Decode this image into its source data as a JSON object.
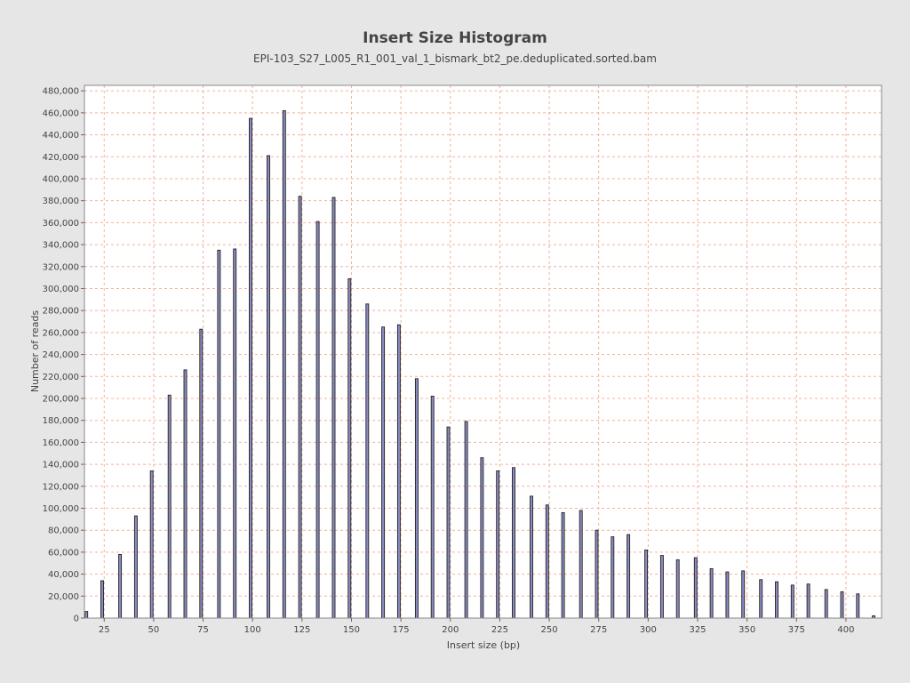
{
  "chart_data": {
    "type": "bar",
    "title": "Insert Size Histogram",
    "subtitle": "EPI-103_S27_L005_R1_001_val_1_bismark_bt2_pe.deduplicated.sorted.bam",
    "xlabel": "Insert size (bp)",
    "ylabel": "Number of reads",
    "xlim": [
      15,
      418
    ],
    "ylim": [
      0,
      485000
    ],
    "x_ticks": [
      25,
      50,
      75,
      100,
      125,
      150,
      175,
      200,
      225,
      250,
      275,
      300,
      325,
      350,
      375,
      400
    ],
    "y_ticks": [
      0,
      20000,
      40000,
      60000,
      80000,
      100000,
      120000,
      140000,
      160000,
      180000,
      200000,
      220000,
      240000,
      260000,
      280000,
      300000,
      320000,
      340000,
      360000,
      380000,
      400000,
      420000,
      440000,
      460000,
      480000
    ],
    "y_tick_labels": [
      "0",
      "20,000",
      "40,000",
      "60,000",
      "80,000",
      "100,000",
      "120,000",
      "140,000",
      "160,000",
      "180,000",
      "200,000",
      "220,000",
      "240,000",
      "260,000",
      "280,000",
      "300,000",
      "320,000",
      "340,000",
      "360,000",
      "380,000",
      "400,000",
      "420,000",
      "440,000",
      "460,000",
      "480,000"
    ],
    "grid": true,
    "colors": {
      "bar_fill": "#8c8cc4",
      "bar_stroke": "#222222",
      "grid": "#f0b49a",
      "plot_bg": "#ffffff",
      "background": "#e6e6e6"
    },
    "x": [
      16,
      24,
      33,
      41,
      49,
      58,
      66,
      74,
      83,
      91,
      99,
      108,
      116,
      124,
      133,
      141,
      149,
      158,
      166,
      174,
      183,
      191,
      199,
      208,
      216,
      224,
      232,
      241,
      249,
      257,
      266,
      274,
      282,
      290,
      299,
      307,
      315,
      324,
      332,
      340,
      348,
      357,
      365,
      373,
      381,
      390,
      398,
      406,
      414
    ],
    "values": [
      6000,
      34000,
      58000,
      93000,
      134000,
      203000,
      226000,
      263000,
      335000,
      336000,
      455000,
      421000,
      462000,
      384000,
      361000,
      383000,
      309000,
      286000,
      265000,
      267000,
      218000,
      202000,
      174000,
      179000,
      146000,
      134000,
      137000,
      111000,
      103000,
      96000,
      98000,
      80000,
      74000,
      76000,
      62000,
      57000,
      53000,
      55000,
      45000,
      42000,
      43000,
      35000,
      33000,
      30000,
      31000,
      26000,
      24000,
      22000,
      2000
    ]
  }
}
